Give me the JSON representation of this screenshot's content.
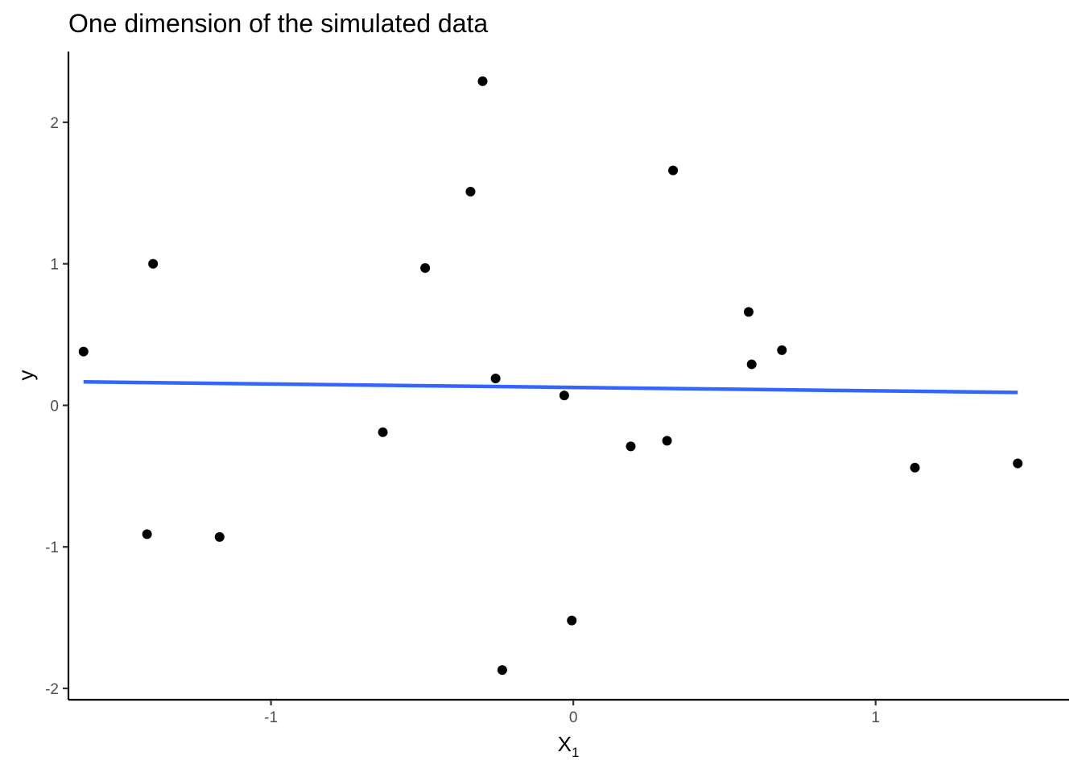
{
  "chart_data": {
    "type": "scatter",
    "title": "One dimension of the simulated data",
    "xlabel": "X",
    "xlabel_subscript": "1",
    "ylabel": "y",
    "xlim": [
      -1.67,
      1.64
    ],
    "ylim": [
      -2.08,
      2.5
    ],
    "x_ticks": [
      {
        "value": -1,
        "label": "-1"
      },
      {
        "value": 0,
        "label": "0"
      },
      {
        "value": 1,
        "label": "1"
      }
    ],
    "y_ticks": [
      {
        "value": -2,
        "label": "-2"
      },
      {
        "value": -1,
        "label": "-1"
      },
      {
        "value": 0,
        "label": "0"
      },
      {
        "value": 1,
        "label": "1"
      },
      {
        "value": 2,
        "label": "2"
      }
    ],
    "grid": false,
    "legend": "none",
    "point_color": "#000000",
    "points": [
      {
        "x": -1.62,
        "y": 0.38
      },
      {
        "x": -1.39,
        "y": 1.0
      },
      {
        "x": -1.41,
        "y": -0.91
      },
      {
        "x": -1.17,
        "y": -0.93
      },
      {
        "x": -0.63,
        "y": -0.19
      },
      {
        "x": -0.49,
        "y": 0.97
      },
      {
        "x": -0.34,
        "y": 1.51
      },
      {
        "x": -0.3,
        "y": 2.29
      },
      {
        "x": -0.257,
        "y": 0.19
      },
      {
        "x": -0.235,
        "y": -1.87
      },
      {
        "x": -0.03,
        "y": 0.07
      },
      {
        "x": -0.005,
        "y": -1.52
      },
      {
        "x": 0.19,
        "y": -0.29
      },
      {
        "x": 0.31,
        "y": -0.25
      },
      {
        "x": 0.33,
        "y": 1.66
      },
      {
        "x": 0.58,
        "y": 0.66
      },
      {
        "x": 0.59,
        "y": 0.29
      },
      {
        "x": 0.69,
        "y": 0.39
      },
      {
        "x": 1.13,
        "y": -0.44
      },
      {
        "x": 1.47,
        "y": -0.41
      }
    ],
    "fit_line": {
      "color": "#3366ff",
      "x": [
        -1.62,
        1.47
      ],
      "y": [
        0.166,
        0.091
      ]
    }
  }
}
